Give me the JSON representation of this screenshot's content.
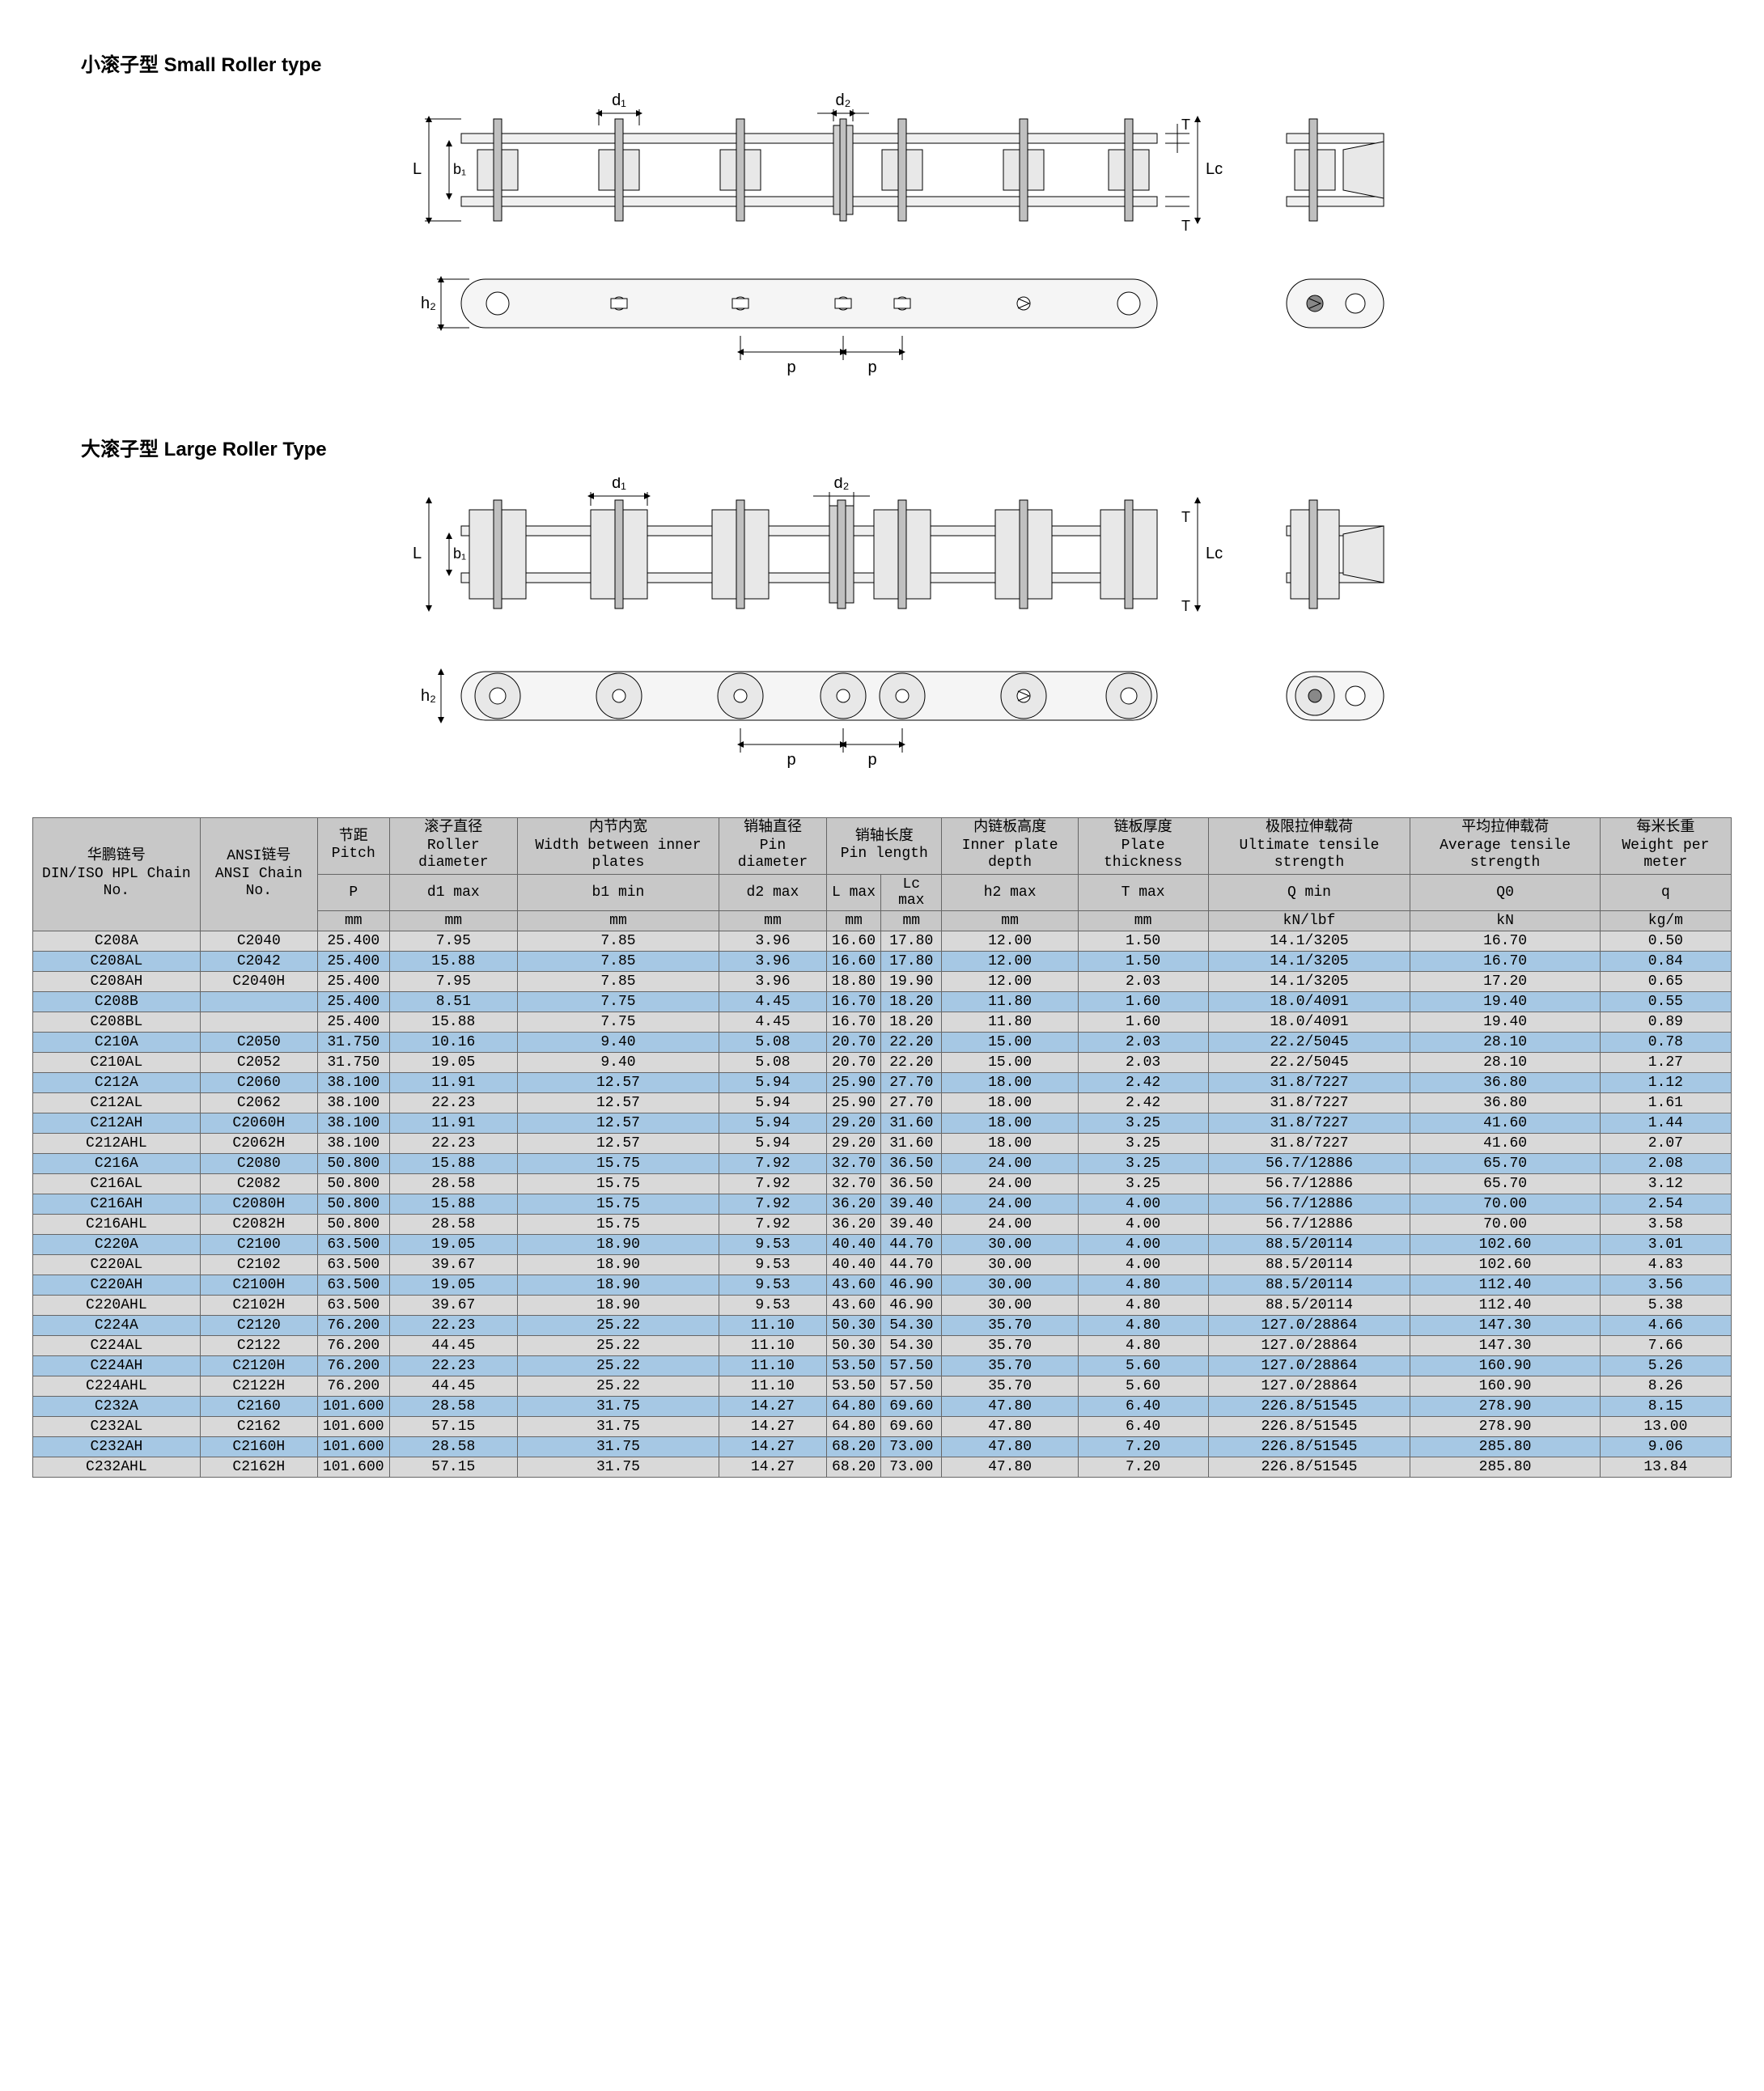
{
  "titles": {
    "small": "小滚子型 Small Roller type",
    "large": "大滚子型 Large Roller Type"
  },
  "diagram": {
    "labels": {
      "d1": "d₁",
      "d2": "d₂",
      "L": "L",
      "b1": "b₁",
      "Lc": "Lc",
      "T_top": "T",
      "T_bot": "T",
      "h2": "h₂",
      "p": "p"
    },
    "colors": {
      "stroke": "#000000",
      "fill_light": "#e8e8e8",
      "fill_mid": "#c0c0c0",
      "fill_dark": "#888888",
      "bg": "#f5f5f5"
    }
  },
  "table": {
    "headers": {
      "col1": {
        "cn": "华鹏链号",
        "en": "DIN/ISO HPL Chain No."
      },
      "col2": {
        "cn": "ANSI链号",
        "en": "ANSI Chain No."
      },
      "col3": {
        "cn": "节距",
        "en": "Pitch"
      },
      "col4": {
        "cn": "滚子直径",
        "en": "Roller diameter"
      },
      "col5": {
        "cn": "内节内宽",
        "en": "Width between inner plates"
      },
      "col6": {
        "cn": "销轴直径",
        "en": "Pin diameter"
      },
      "col7": {
        "cn": "销轴长度",
        "en": "Pin length"
      },
      "col8": {
        "cn": "内链板高度",
        "en": "Inner plate depth"
      },
      "col9": {
        "cn": "链板厚度",
        "en": "Plate thickness"
      },
      "col10": {
        "cn": "极限拉伸载荷",
        "en": "Ultimate tensile strength"
      },
      "col11": {
        "cn": "平均拉伸载荷",
        "en": "Average tensile strength"
      },
      "col12": {
        "cn": "每米长重",
        "en": "Weight per meter"
      }
    },
    "symbols": {
      "P": "P",
      "d1max": "d1 max",
      "b1min": "b1 min",
      "d2max": "d2 max",
      "Lmax": "L max",
      "Lcmax": "Lc max",
      "h2max": "h2 max",
      "Tmax": "T max",
      "Qmin": "Q min",
      "Q0": "Q0",
      "q": "q"
    },
    "units": {
      "mm": "mm",
      "kNlbf": "kN/lbf",
      "kN": "kN",
      "kgm": "kg/m"
    },
    "rows": [
      {
        "hpl": "C208A",
        "ansi": "C2040",
        "p": "25.400",
        "d1": "7.95",
        "b1": "7.85",
        "d2": "3.96",
        "l": "16.60",
        "lc": "17.80",
        "h2": "12.00",
        "t": "1.50",
        "q": "14.1/3205",
        "q0": "16.70",
        "wt": "0.50",
        "cls": "gray"
      },
      {
        "hpl": "C208AL",
        "ansi": "C2042",
        "p": "25.400",
        "d1": "15.88",
        "b1": "7.85",
        "d2": "3.96",
        "l": "16.60",
        "lc": "17.80",
        "h2": "12.00",
        "t": "1.50",
        "q": "14.1/3205",
        "q0": "16.70",
        "wt": "0.84",
        "cls": "blue"
      },
      {
        "hpl": "C208AH",
        "ansi": "C2040H",
        "p": "25.400",
        "d1": "7.95",
        "b1": "7.85",
        "d2": "3.96",
        "l": "18.80",
        "lc": "19.90",
        "h2": "12.00",
        "t": "2.03",
        "q": "14.1/3205",
        "q0": "17.20",
        "wt": "0.65",
        "cls": "gray"
      },
      {
        "hpl": "C208B",
        "ansi": "",
        "p": "25.400",
        "d1": "8.51",
        "b1": "7.75",
        "d2": "4.45",
        "l": "16.70",
        "lc": "18.20",
        "h2": "11.80",
        "t": "1.60",
        "q": "18.0/4091",
        "q0": "19.40",
        "wt": "0.55",
        "cls": "blue"
      },
      {
        "hpl": "C208BL",
        "ansi": "",
        "p": "25.400",
        "d1": "15.88",
        "b1": "7.75",
        "d2": "4.45",
        "l": "16.70",
        "lc": "18.20",
        "h2": "11.80",
        "t": "1.60",
        "q": "18.0/4091",
        "q0": "19.40",
        "wt": "0.89",
        "cls": "gray"
      },
      {
        "hpl": "C210A",
        "ansi": "C2050",
        "p": "31.750",
        "d1": "10.16",
        "b1": "9.40",
        "d2": "5.08",
        "l": "20.70",
        "lc": "22.20",
        "h2": "15.00",
        "t": "2.03",
        "q": "22.2/5045",
        "q0": "28.10",
        "wt": "0.78",
        "cls": "blue"
      },
      {
        "hpl": "C210AL",
        "ansi": "C2052",
        "p": "31.750",
        "d1": "19.05",
        "b1": "9.40",
        "d2": "5.08",
        "l": "20.70",
        "lc": "22.20",
        "h2": "15.00",
        "t": "2.03",
        "q": "22.2/5045",
        "q0": "28.10",
        "wt": "1.27",
        "cls": "gray"
      },
      {
        "hpl": "C212A",
        "ansi": "C2060",
        "p": "38.100",
        "d1": "11.91",
        "b1": "12.57",
        "d2": "5.94",
        "l": "25.90",
        "lc": "27.70",
        "h2": "18.00",
        "t": "2.42",
        "q": "31.8/7227",
        "q0": "36.80",
        "wt": "1.12",
        "cls": "blue"
      },
      {
        "hpl": "C212AL",
        "ansi": "C2062",
        "p": "38.100",
        "d1": "22.23",
        "b1": "12.57",
        "d2": "5.94",
        "l": "25.90",
        "lc": "27.70",
        "h2": "18.00",
        "t": "2.42",
        "q": "31.8/7227",
        "q0": "36.80",
        "wt": "1.61",
        "cls": "gray"
      },
      {
        "hpl": "C212AH",
        "ansi": "C2060H",
        "p": "38.100",
        "d1": "11.91",
        "b1": "12.57",
        "d2": "5.94",
        "l": "29.20",
        "lc": "31.60",
        "h2": "18.00",
        "t": "3.25",
        "q": "31.8/7227",
        "q0": "41.60",
        "wt": "1.44",
        "cls": "blue"
      },
      {
        "hpl": "C212AHL",
        "ansi": "C2062H",
        "p": "38.100",
        "d1": "22.23",
        "b1": "12.57",
        "d2": "5.94",
        "l": "29.20",
        "lc": "31.60",
        "h2": "18.00",
        "t": "3.25",
        "q": "31.8/7227",
        "q0": "41.60",
        "wt": "2.07",
        "cls": "gray"
      },
      {
        "hpl": "C216A",
        "ansi": "C2080",
        "p": "50.800",
        "d1": "15.88",
        "b1": "15.75",
        "d2": "7.92",
        "l": "32.70",
        "lc": "36.50",
        "h2": "24.00",
        "t": "3.25",
        "q": "56.7/12886",
        "q0": "65.70",
        "wt": "2.08",
        "cls": "blue"
      },
      {
        "hpl": "C216AL",
        "ansi": "C2082",
        "p": "50.800",
        "d1": "28.58",
        "b1": "15.75",
        "d2": "7.92",
        "l": "32.70",
        "lc": "36.50",
        "h2": "24.00",
        "t": "3.25",
        "q": "56.7/12886",
        "q0": "65.70",
        "wt": "3.12",
        "cls": "gray"
      },
      {
        "hpl": "C216AH",
        "ansi": "C2080H",
        "p": "50.800",
        "d1": "15.88",
        "b1": "15.75",
        "d2": "7.92",
        "l": "36.20",
        "lc": "39.40",
        "h2": "24.00",
        "t": "4.00",
        "q": "56.7/12886",
        "q0": "70.00",
        "wt": "2.54",
        "cls": "blue"
      },
      {
        "hpl": "C216AHL",
        "ansi": "C2082H",
        "p": "50.800",
        "d1": "28.58",
        "b1": "15.75",
        "d2": "7.92",
        "l": "36.20",
        "lc": "39.40",
        "h2": "24.00",
        "t": "4.00",
        "q": "56.7/12886",
        "q0": "70.00",
        "wt": "3.58",
        "cls": "gray"
      },
      {
        "hpl": "C220A",
        "ansi": "C2100",
        "p": "63.500",
        "d1": "19.05",
        "b1": "18.90",
        "d2": "9.53",
        "l": "40.40",
        "lc": "44.70",
        "h2": "30.00",
        "t": "4.00",
        "q": "88.5/20114",
        "q0": "102.60",
        "wt": "3.01",
        "cls": "blue"
      },
      {
        "hpl": "C220AL",
        "ansi": "C2102",
        "p": "63.500",
        "d1": "39.67",
        "b1": "18.90",
        "d2": "9.53",
        "l": "40.40",
        "lc": "44.70",
        "h2": "30.00",
        "t": "4.00",
        "q": "88.5/20114",
        "q0": "102.60",
        "wt": "4.83",
        "cls": "gray"
      },
      {
        "hpl": "C220AH",
        "ansi": "C2100H",
        "p": "63.500",
        "d1": "19.05",
        "b1": "18.90",
        "d2": "9.53",
        "l": "43.60",
        "lc": "46.90",
        "h2": "30.00",
        "t": "4.80",
        "q": "88.5/20114",
        "q0": "112.40",
        "wt": "3.56",
        "cls": "blue"
      },
      {
        "hpl": "C220AHL",
        "ansi": "C2102H",
        "p": "63.500",
        "d1": "39.67",
        "b1": "18.90",
        "d2": "9.53",
        "l": "43.60",
        "lc": "46.90",
        "h2": "30.00",
        "t": "4.80",
        "q": "88.5/20114",
        "q0": "112.40",
        "wt": "5.38",
        "cls": "gray"
      },
      {
        "hpl": "C224A",
        "ansi": "C2120",
        "p": "76.200",
        "d1": "22.23",
        "b1": "25.22",
        "d2": "11.10",
        "l": "50.30",
        "lc": "54.30",
        "h2": "35.70",
        "t": "4.80",
        "q": "127.0/28864",
        "q0": "147.30",
        "wt": "4.66",
        "cls": "blue"
      },
      {
        "hpl": "C224AL",
        "ansi": "C2122",
        "p": "76.200",
        "d1": "44.45",
        "b1": "25.22",
        "d2": "11.10",
        "l": "50.30",
        "lc": "54.30",
        "h2": "35.70",
        "t": "4.80",
        "q": "127.0/28864",
        "q0": "147.30",
        "wt": "7.66",
        "cls": "gray"
      },
      {
        "hpl": "C224AH",
        "ansi": "C2120H",
        "p": "76.200",
        "d1": "22.23",
        "b1": "25.22",
        "d2": "11.10",
        "l": "53.50",
        "lc": "57.50",
        "h2": "35.70",
        "t": "5.60",
        "q": "127.0/28864",
        "q0": "160.90",
        "wt": "5.26",
        "cls": "blue"
      },
      {
        "hpl": "C224AHL",
        "ansi": "C2122H",
        "p": "76.200",
        "d1": "44.45",
        "b1": "25.22",
        "d2": "11.10",
        "l": "53.50",
        "lc": "57.50",
        "h2": "35.70",
        "t": "5.60",
        "q": "127.0/28864",
        "q0": "160.90",
        "wt": "8.26",
        "cls": "gray"
      },
      {
        "hpl": "C232A",
        "ansi": "C2160",
        "p": "101.600",
        "d1": "28.58",
        "b1": "31.75",
        "d2": "14.27",
        "l": "64.80",
        "lc": "69.60",
        "h2": "47.80",
        "t": "6.40",
        "q": "226.8/51545",
        "q0": "278.90",
        "wt": "8.15",
        "cls": "blue"
      },
      {
        "hpl": "C232AL",
        "ansi": "C2162",
        "p": "101.600",
        "d1": "57.15",
        "b1": "31.75",
        "d2": "14.27",
        "l": "64.80",
        "lc": "69.60",
        "h2": "47.80",
        "t": "6.40",
        "q": "226.8/51545",
        "q0": "278.90",
        "wt": "13.00",
        "cls": "gray"
      },
      {
        "hpl": "C232AH",
        "ansi": "C2160H",
        "p": "101.600",
        "d1": "28.58",
        "b1": "31.75",
        "d2": "14.27",
        "l": "68.20",
        "lc": "73.00",
        "h2": "47.80",
        "t": "7.20",
        "q": "226.8/51545",
        "q0": "285.80",
        "wt": "9.06",
        "cls": "blue"
      },
      {
        "hpl": "C232AHL",
        "ansi": "C2162H",
        "p": "101.600",
        "d1": "57.15",
        "b1": "31.75",
        "d2": "14.27",
        "l": "68.20",
        "lc": "73.00",
        "h2": "47.80",
        "t": "7.20",
        "q": "226.8/51545",
        "q0": "285.80",
        "wt": "13.84",
        "cls": "gray"
      }
    ]
  }
}
